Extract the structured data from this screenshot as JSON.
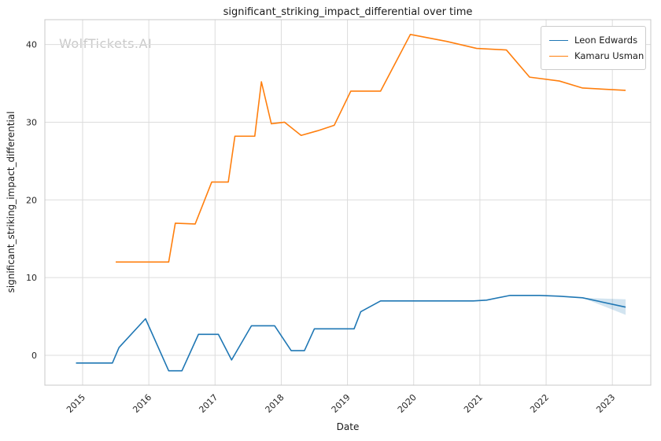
{
  "watermark": "WolfTickets.AI",
  "chart_data": {
    "type": "line",
    "title": "significant_striking_impact_differential over time",
    "xlabel": "Date",
    "ylabel": "significant_striking_impact_differential",
    "xlim": [
      2014.43,
      2023.58
    ],
    "ylim": [
      -3.85,
      43.2
    ],
    "xticks": [
      2015,
      2016,
      2017,
      2018,
      2019,
      2020,
      2021,
      2022,
      2023
    ],
    "yticks": [
      0,
      10,
      20,
      30,
      40
    ],
    "grid": true,
    "legend_position": "upper right",
    "series": [
      {
        "name": "Leon Edwards",
        "color": "#1f77b4",
        "x": [
          2014.9,
          2015.45,
          2015.55,
          2015.95,
          2016.3,
          2016.5,
          2016.75,
          2017.05,
          2017.25,
          2017.55,
          2017.9,
          2018.15,
          2018.35,
          2018.5,
          2019.1,
          2019.2,
          2019.5,
          2020.9,
          2021.1,
          2021.45,
          2021.9,
          2022.2,
          2022.55,
          2023.2
        ],
        "y": [
          -1.0,
          -1.0,
          1.0,
          4.7,
          -2.0,
          -2.0,
          2.7,
          2.7,
          -0.6,
          3.8,
          3.8,
          0.6,
          0.6,
          3.4,
          3.4,
          5.6,
          7.0,
          7.0,
          7.1,
          7.7,
          7.7,
          7.6,
          7.4,
          6.2
        ]
      },
      {
        "name": "Kamaru Usman",
        "color": "#ff7f0e",
        "x": [
          2015.5,
          2016.3,
          2016.4,
          2016.7,
          2016.95,
          2017.2,
          2017.3,
          2017.6,
          2017.7,
          2017.85,
          2018.05,
          2018.3,
          2018.55,
          2018.8,
          2019.05,
          2019.5,
          2019.95,
          2020.5,
          2020.95,
          2021.4,
          2021.75,
          2022.2,
          2022.55,
          2023.2
        ],
        "y": [
          12.0,
          12.0,
          17.0,
          16.9,
          22.3,
          22.3,
          28.2,
          28.2,
          35.2,
          29.8,
          30.0,
          28.3,
          28.9,
          29.6,
          34.0,
          34.0,
          41.3,
          40.4,
          39.5,
          39.3,
          35.8,
          35.3,
          34.4,
          34.1
        ]
      }
    ],
    "confidence_band": {
      "series": "Leon Edwards",
      "color": "#1f77b4",
      "opacity": 0.2,
      "x": [
        2022.55,
        2023.2
      ],
      "upper": [
        7.4,
        7.2
      ],
      "lower": [
        7.4,
        5.2
      ]
    }
  }
}
